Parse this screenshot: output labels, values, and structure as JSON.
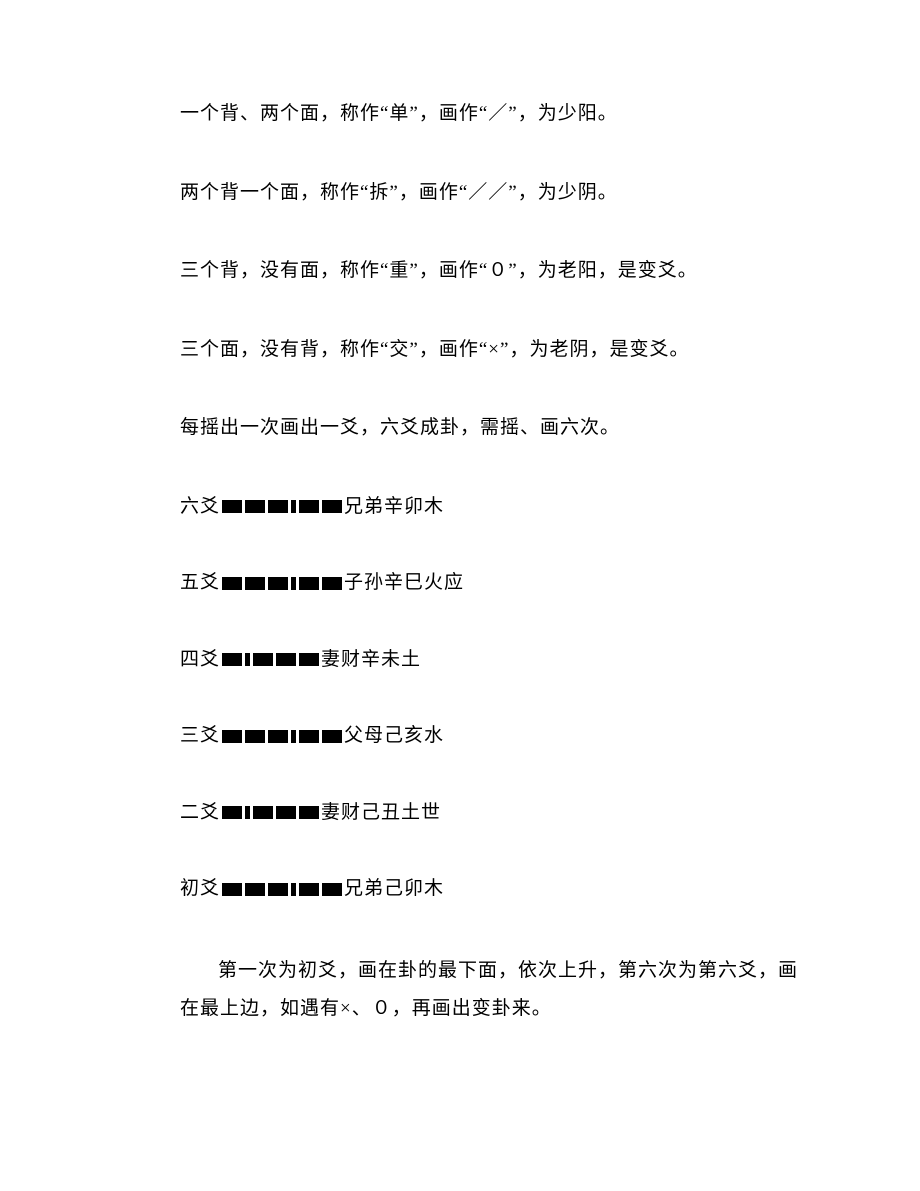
{
  "paragraphs": {
    "p1": "一个背、两个面，称作“单”，画作“／”，为少阳。",
    "p2": "两个背一个面，称作“拆”，画作“／／”，为少阴。",
    "p3": "三个背，没有面，称作“重”，画作“０”，为老阳，是变爻。",
    "p4": "三个面，没有背，称作“交”，画作“×”，为老阴，是变爻。",
    "p5": "每摇出一次画出一爻，六爻成卦，需摇、画六次。"
  },
  "yaoLines": [
    {
      "label": "六爻",
      "desc": "兄弟辛卯木",
      "segments": [
        20,
        20,
        20,
        5,
        20,
        20
      ],
      "gaps": [
        3,
        3,
        3,
        3,
        3
      ]
    },
    {
      "label": "五爻",
      "desc": "子孙辛巳火应",
      "segments": [
        20,
        20,
        20,
        5,
        20,
        20
      ],
      "gaps": [
        3,
        3,
        3,
        3,
        3
      ]
    },
    {
      "label": "四爻",
      "desc": "妻财辛未土",
      "segments": [
        20,
        5,
        20,
        20,
        20
      ],
      "gaps": [
        3,
        3,
        3,
        3
      ]
    },
    {
      "label": "三爻",
      "desc": "父母己亥水",
      "segments": [
        20,
        20,
        20,
        5,
        20,
        20
      ],
      "gaps": [
        3,
        3,
        3,
        3,
        3
      ]
    },
    {
      "label": "二爻",
      "desc": "妻财己丑土世",
      "segments": [
        20,
        5,
        20,
        20,
        20
      ],
      "gaps": [
        3,
        3,
        3,
        3
      ]
    },
    {
      "label": "初爻",
      "desc": "兄弟己卯木",
      "segments": [
        20,
        20,
        20,
        5,
        20,
        20
      ],
      "gaps": [
        3,
        3,
        3,
        3,
        3
      ]
    }
  ],
  "finalPara": "第一次为初爻，画在卦的最下面，依次上升，第六次为第六爻，画在最上边，如遇有×、０，再画出变卦来。",
  "colors": {
    "text": "#000000",
    "background": "#ffffff",
    "bar": "#000000"
  },
  "typography": {
    "fontSize": 19,
    "fontFamily": "SimSun"
  }
}
